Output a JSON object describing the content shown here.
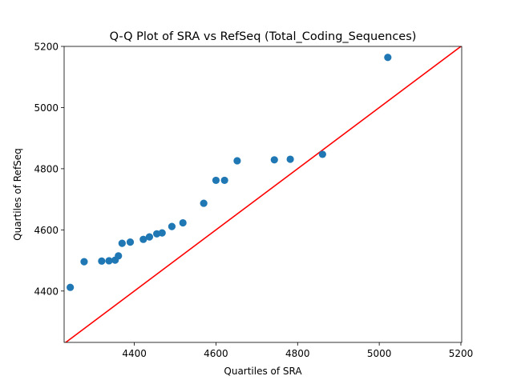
{
  "chart_data": {
    "type": "scatter",
    "title": "Q-Q Plot of SRA vs RefSeq (Total_Coding_Sequences)",
    "xlabel": "Quartiles of SRA",
    "ylabel": "Quartiles of RefSeq",
    "xlim": [
      4228,
      5202
    ],
    "ylim": [
      4232,
      5200
    ],
    "xticks": [
      4400,
      4600,
      4800,
      5000,
      5200
    ],
    "yticks": [
      4400,
      4600,
      4800,
      5000,
      5200
    ],
    "grid": false,
    "series": [
      {
        "marker_color": "#1f77b4",
        "points": [
          [
            4243,
            4412
          ],
          [
            4277,
            4496
          ],
          [
            4320,
            4498
          ],
          [
            4338,
            4499
          ],
          [
            4353,
            4501
          ],
          [
            4361,
            4515
          ],
          [
            4370,
            4556
          ],
          [
            4390,
            4560
          ],
          [
            4422,
            4569
          ],
          [
            4437,
            4577
          ],
          [
            4455,
            4587
          ],
          [
            4468,
            4590
          ],
          [
            4492,
            4611
          ],
          [
            4519,
            4623
          ],
          [
            4570,
            4687
          ],
          [
            4600,
            4762
          ],
          [
            4621,
            4762
          ],
          [
            4652,
            4826
          ],
          [
            4743,
            4829
          ],
          [
            4782,
            4831
          ],
          [
            4861,
            4847
          ],
          [
            5021,
            5164
          ]
        ]
      }
    ],
    "reference_line": {
      "color": "#ff0000",
      "points": [
        [
          4228,
          4228
        ],
        [
          5202,
          5202
        ]
      ]
    }
  }
}
